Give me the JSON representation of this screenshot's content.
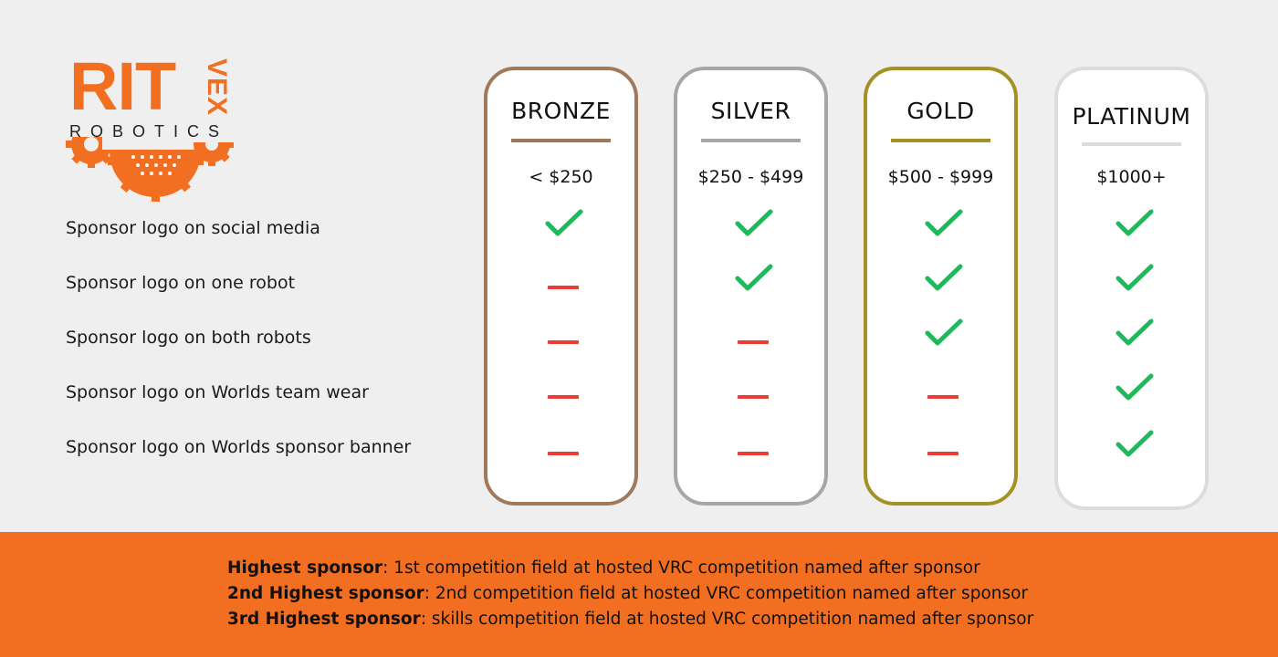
{
  "logo": {
    "main": "RIT",
    "side": "VEX",
    "sub": "ROBOTICS",
    "colors": {
      "orange": "#f26f21",
      "dark": "#222222"
    }
  },
  "features": [
    "Sponsor logo on social media",
    "Sponsor logo on one robot",
    "Sponsor logo on both robots",
    "Sponsor logo on Worlds team wear",
    "Sponsor logo on Worlds sponsor banner"
  ],
  "tiers": [
    {
      "name": "BRONZE",
      "price": "< $250",
      "color": "#a0785a",
      "included": [
        true,
        false,
        false,
        false,
        false
      ]
    },
    {
      "name": "SILVER",
      "price": "$250 - $499",
      "color": "#a6a6a6",
      "included": [
        true,
        true,
        false,
        false,
        false
      ]
    },
    {
      "name": "GOLD",
      "price": "$500 - $999",
      "color": "#a39223",
      "included": [
        true,
        true,
        true,
        false,
        false
      ]
    },
    {
      "name": "PLATINUM",
      "price": "$1000+",
      "color": "#dcdcdc",
      "included": [
        true,
        true,
        true,
        true,
        true
      ]
    }
  ],
  "icons": {
    "included": "check-icon",
    "excluded": "dash-icon"
  },
  "status_colors": {
    "check": "#1fb85a",
    "dash": "#ef3b36"
  },
  "notes": [
    {
      "label": "Highest sponsor",
      "text": ": 1st competition field at hosted VRC competition named after sponsor"
    },
    {
      "label": "2nd Highest sponsor",
      "text": ": 2nd competition field at hosted VRC competition named after sponsor"
    },
    {
      "label": "3rd Highest sponsor",
      "text": ": skills competition field at hosted VRC competition named after sponsor"
    }
  ],
  "footer_color": "#f26f21"
}
